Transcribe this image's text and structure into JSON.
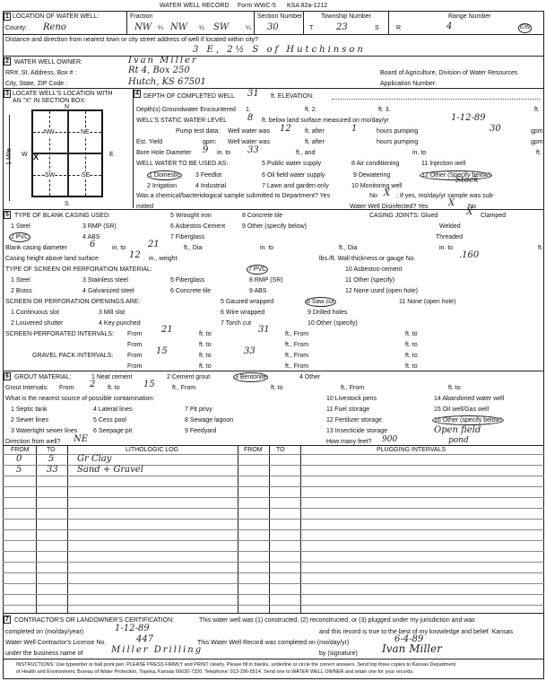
{
  "header": {
    "title": "WATER WELL RECORD",
    "form": "Form WWC-5",
    "ksa": "KSA 82a-1212"
  },
  "s1": {
    "num": "1",
    "label": "LOCATION OF WATER WELL:",
    "county_label": "County:",
    "county": "Reno",
    "fraction_label": "Fraction",
    "fraction": [
      "NW",
      "NW",
      "SW"
    ],
    "q": "¼",
    "section_label": "Section Number",
    "section": "30",
    "township_label": "Township Number",
    "township": "23",
    "t": "T",
    "s": "S",
    "range_label": "Range Number",
    "range": "4",
    "r": "R",
    "ew": "E/W",
    "distance_label": "Distance and direction from nearest town or city street address of well if located within city?",
    "distance": "3 E, 2½ S of Hutchinson"
  },
  "s2": {
    "num": "2",
    "label": "WATER WELL OWNER:",
    "owner": "Ivan Miller",
    "addr_label": "RR#, St. Address, Box # :",
    "addr": "Rt 4, Box 250",
    "city_label": "City, State, ZIP Code :",
    "city": "Hutch, KS 67501",
    "board": "Board of Agriculture, Division of Water Resources",
    "app": "Application Number:"
  },
  "s3": {
    "num": "3",
    "label1": "LOCATE WELL'S LOCATION WITH",
    "label2": "AN \"X\" IN SECTION BOX:",
    "n": "N",
    "s": "S",
    "e": "E",
    "w": "W",
    "nw": "NW",
    "ne": "NE",
    "sw": "SW",
    "se": "SE",
    "mile": "1 Mile",
    "mark": "X"
  },
  "s4": {
    "num": "4",
    "depth_label": "DEPTH OF COMPLETED WELL",
    "depth": "31",
    "elev_label": "ft. ELEVATION:",
    "gw_label": "Depth(s) Groundwater Encountered",
    "gw1": "1.",
    "gw2": "ft. 2.",
    "gw3": "ft. 3.",
    "ft": "ft.",
    "static_label": "WELL'S STATIC WATER LEVEL",
    "static": "8",
    "static_mid": "ft. below land surface measured on mo/day/yr",
    "static_date": "1-12-89",
    "pump_label": "Pump test data:",
    "ww": "Well water was",
    "pump_ft": "12",
    "after": "ft. after",
    "pump_hr": "1",
    "hrs": "hours pumping",
    "pump_gpm": "30",
    "gpm": "gpm",
    "yield_label": "Est. Yield",
    "yield_gpm": "gpm:",
    "bore_label": "Bore Hole Diameter",
    "bore_in": "9",
    "in_to": "in. to",
    "bore_ft": "33",
    "ft_and": "ft., and",
    "in_to2": "in. to",
    "use_label": "WELL WATER TO BE USED AS:",
    "uses": [
      "5 Public water supply",
      "8 Air conditioning",
      "11 Injection well",
      "1 Domestic",
      "3 Feedlot",
      "6 Oil field water supply",
      "9 Dewatering",
      "12 Other (Specify below)",
      "2 Irrigation",
      "4 Industrial",
      "7 Lawn and garden only",
      "10 Monitoring well"
    ],
    "other_use": "Stock",
    "chem": "Was a chemical/bacteriological sample submitted to Department? Yes",
    "no": "No",
    "chem_x": "X",
    "chem_end": "; If yes, mo/day/yr sample was sub-",
    "mitted": "mitted",
    "disinf": "Water Well Disinfected? Yes",
    "disinf_x": "X",
    "disinf_no": "No"
  },
  "s5": {
    "num": "5",
    "casing_label": "TYPE OF BLANK CASING USED:",
    "casing": [
      "5 Wrought iron",
      "8 Concrete tile",
      "1 Steel",
      "3 RMP (SR)",
      "6 Asbestos-Cement",
      "9 Other (specify below)",
      "2 PVC",
      "4 ABS",
      "7 Fiberglass"
    ],
    "joints_label": "CASING JOINTS: Glued",
    "glued_x": "X",
    "clamped": "Clamped",
    "welded": "Welded",
    "threaded": "Threaded",
    "dia_label": "Blank casing diameter",
    "dia": "6",
    "in_to": "in. to",
    "dia_ft": "21",
    "ft_dia": "ft., Dia",
    "in_to2": "in. to",
    "ft_dia2": "ft., Dia",
    "in_to3": "in. to",
    "ft": "ft.",
    "height_label": "Casing height above land surface",
    "height": "12",
    "in_weight": "in., weight",
    "lbs": "lbs./ft. Wall thickness or gauge No.",
    "gauge": ".160",
    "screen_label": "TYPE OF SCREEN OR PERFORATION MATERIAL:",
    "screen": [
      "7 PVC",
      "10 Asbestos-cement",
      "1 Steel",
      "3 Stainless steel",
      "5 Fiberglass",
      "8 RMP (SR)",
      "11 Other (specify)",
      "2 Brass",
      "4 Galvanized steel",
      "6 Concrete tile",
      "9 ABS",
      "12 None used (open hole)"
    ],
    "open_label": "SCREEN OR PERFORATION OPENINGS ARE:",
    "openings": [
      "5 Gauzed wrapped",
      "8 Saw cut",
      "11 None (open hole)",
      "1 Continuous slot",
      "3 Mill slot",
      "6 Wire wrapped",
      "9 Drilled holes",
      "2 Louvered shutter",
      "4 Key punched",
      "7 Torch cut",
      "10 Other (specify)"
    ],
    "spi_label": "SCREEN-PERFORATED INTERVALS:",
    "from": "From",
    "ft_to": "ft. to",
    "ft_from": "ft., From",
    "spi_from": "21",
    "spi_to": "31",
    "gpi_label": "GRAVEL PACK INTERVALS:",
    "gpi_from": "15",
    "gpi_to": "33"
  },
  "s6": {
    "num": "6",
    "grout_label": "GROUT MATERIAL:",
    "grout": [
      "1 Neat cement",
      "2 Cement grout",
      "3 Bentonite",
      "4 Other"
    ],
    "gi_label": "Grout Intervals:",
    "from": "From",
    "gi_from": "2",
    "ft_to": "ft. to",
    "gi_to": "15",
    "ft_from": "ft., From",
    "ft": "ft.",
    "contam_label": "What is the nearest source of possible contamination:",
    "contam": [
      "10 Livestock pens",
      "14 Abandoned water well",
      "1 Septic tank",
      "4 Lateral lines",
      "7 Pit privy",
      "11 Fuel storage",
      "15 Oil well/Gas well",
      "2 Sewer lines",
      "5 Cess pool",
      "8 Sewage lagoon",
      "12 Fertilizer storage",
      "16 Other (specify below)",
      "3 Watertight sewer lines",
      "6 Seepage pit",
      "9 Feedyard",
      "13 Insecticide storage"
    ],
    "other_contam": "Open field",
    "pond": "pond",
    "dir_label": "Direction from well?",
    "dir": "NE",
    "feet_label": "How many feet?",
    "feet": "900"
  },
  "log": {
    "headers": [
      "FROM",
      "TO",
      "LITHOLOGIC LOG",
      "FROM",
      "TO",
      "PLUGGING INTERVALS"
    ],
    "rows": [
      [
        "0",
        "5",
        "Gr Clay"
      ],
      [
        "5",
        "33",
        "Sand + Gravel"
      ]
    ]
  },
  "s7": {
    "num": "7",
    "cert": "CONTRACTOR'S OR LANDOWNER'S CERTIFICATION:",
    "cert_text": "This water well was (1) constructed, (2) reconstructed, or (3) plugged under my jurisdiction and was",
    "completed_label": "completed on (mo/day/year)",
    "completed": "1-12-89",
    "true_text": "and this record is true to the best of my knowledge and belief. Kansas",
    "license_label": "Water Well Contractor's License No.",
    "license": "447",
    "record_label": "This Water Well Record was completed on (mo/day/yr)",
    "record_date": "6-4-89",
    "business_label": "under the business name of",
    "business": "Miller Drilling",
    "sig_label": "by (signature)",
    "signature": "Ivan Miller",
    "instr1": "INSTRUCTIONS: Use typewriter or ball point pen. PLEASE PRESS FIRMLY and PRINT clearly. Please fill in blanks, underline or circle the correct answers. Send top three copies to Kansas Department",
    "instr2": "of Health and Environment, Bureau of Water Protection, Topeka, Kansas 66620-7320. Telephone: 913-296-5514. Send one to WATER WELL OWNER and retain one for your records."
  }
}
